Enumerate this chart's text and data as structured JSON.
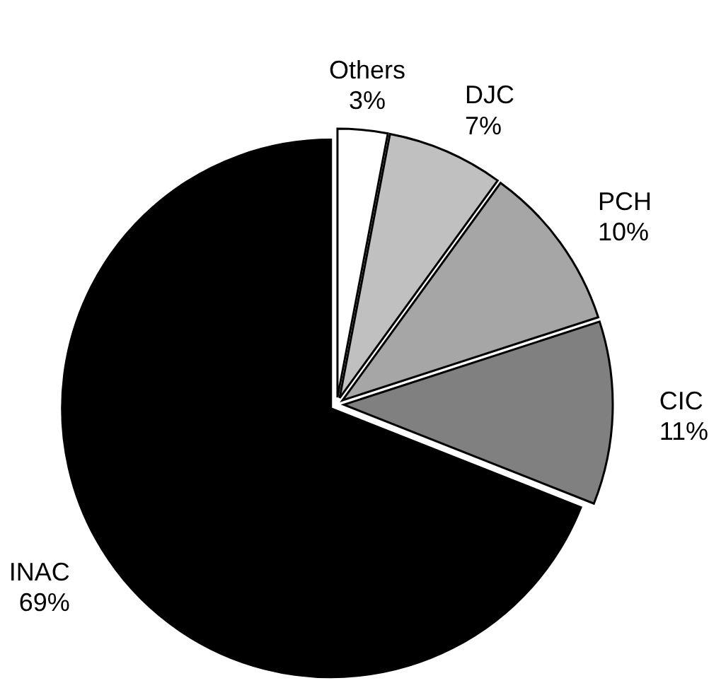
{
  "chart_data": {
    "type": "pie",
    "categories": [
      "Others",
      "DJC",
      "PCH",
      "CIC",
      "INAC"
    ],
    "values": [
      3,
      7,
      10,
      11,
      69
    ],
    "value_labels": [
      "3%",
      "7%",
      "10%",
      "11%",
      "69%"
    ],
    "colors": [
      "#ffffff",
      "#c0c0c0",
      "#a6a6a6",
      "#808080",
      "#000000"
    ]
  }
}
